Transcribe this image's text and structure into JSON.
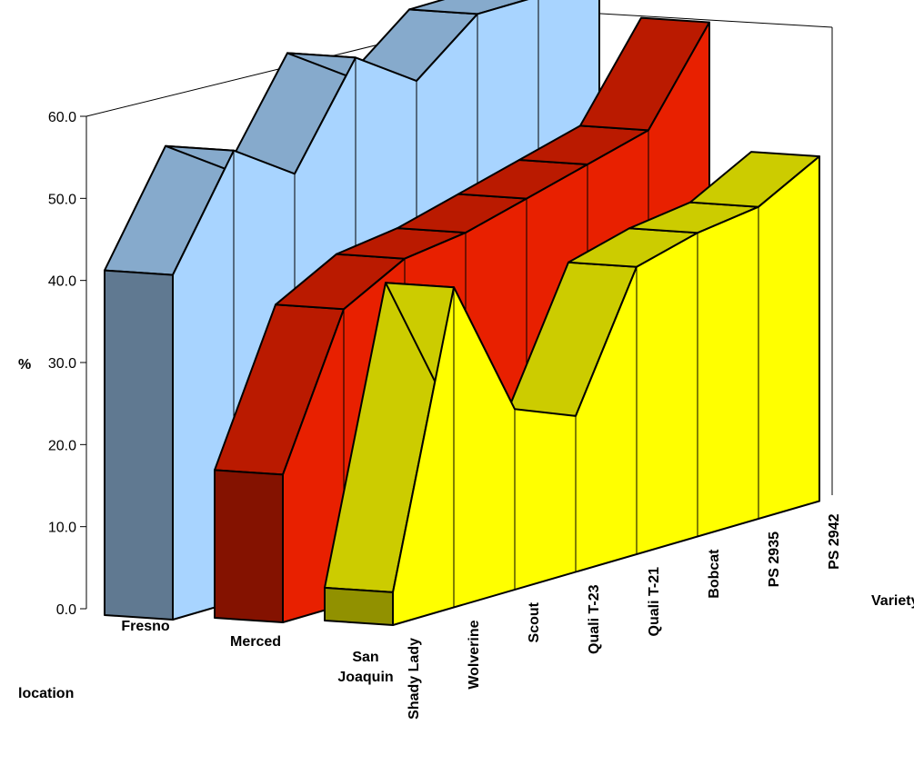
{
  "chart_data": {
    "type": "area3d",
    "y_label": "%",
    "x_label": "Variety",
    "z_label": "location",
    "categories": [
      "Shady Lady",
      "Wolverine",
      "Scout",
      "Quali T-23",
      "Quali T-21",
      "Bobcat",
      "PS 2935",
      "PS 2942"
    ],
    "series": [
      {
        "name": "Fresno",
        "color": "#a8d4ff",
        "values": [
          42,
          55,
          50,
          62,
          57,
          63,
          63,
          66
        ]
      },
      {
        "name": "Merced",
        "color": "#e82000",
        "values": [
          18,
          36,
          40,
          41,
          43,
          45,
          47,
          58
        ]
      },
      {
        "name": "San Joaquin",
        "color": "#ffff00",
        "values": [
          4,
          39,
          22,
          19,
          35,
          37,
          38,
          42
        ]
      }
    ],
    "ylim": [
      0,
      60
    ],
    "yticks": [
      {
        "value": 0,
        "label": "0.0"
      },
      {
        "value": 10,
        "label": "10.0"
      },
      {
        "value": 20,
        "label": "20.0"
      },
      {
        "value": 30,
        "label": "30.0"
      },
      {
        "value": 40,
        "label": "40.0"
      },
      {
        "value": 50,
        "label": "50.0"
      },
      {
        "value": 60,
        "label": "60.0"
      }
    ]
  }
}
